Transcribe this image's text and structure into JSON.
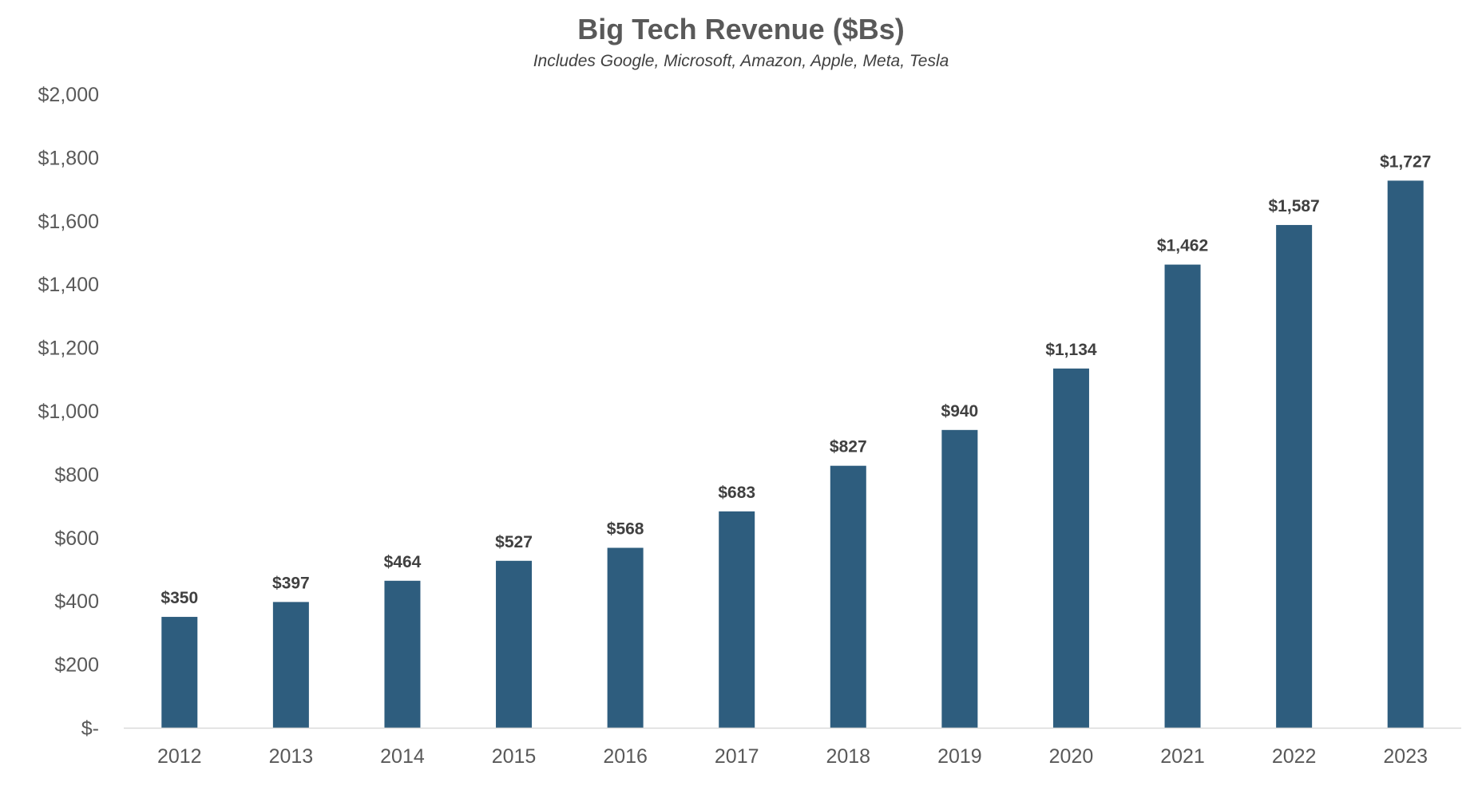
{
  "chart_data": {
    "type": "bar",
    "title": "Big Tech Revenue ($Bs)",
    "subtitle": "Includes Google, Microsoft, Amazon, Apple, Meta, Tesla",
    "xlabel": "",
    "ylabel": "",
    "categories": [
      "2012",
      "2013",
      "2014",
      "2015",
      "2016",
      "2017",
      "2018",
      "2019",
      "2020",
      "2021",
      "2022",
      "2023"
    ],
    "values": [
      350,
      397,
      464,
      527,
      568,
      683,
      827,
      940,
      1134,
      1462,
      1587,
      1727
    ],
    "data_labels": [
      "$350",
      "$397",
      "$464",
      "$527",
      "$568",
      "$683",
      "$827",
      "$940",
      "$1,134",
      "$1,462",
      "$1,587",
      "$1,727"
    ],
    "ylim": [
      0,
      2000
    ],
    "yticks": [
      0,
      200,
      400,
      600,
      800,
      1000,
      1200,
      1400,
      1600,
      1800,
      2000
    ],
    "ytick_labels": [
      "$-",
      "$200",
      "$400",
      "$600",
      "$800",
      "$1,000",
      "$1,200",
      "$1,400",
      "$1,600",
      "$1,800",
      "$2,000"
    ],
    "grid": false,
    "legend": "none",
    "bar_color": "#2E5D7E",
    "axis_color": "#D9D9D9"
  }
}
